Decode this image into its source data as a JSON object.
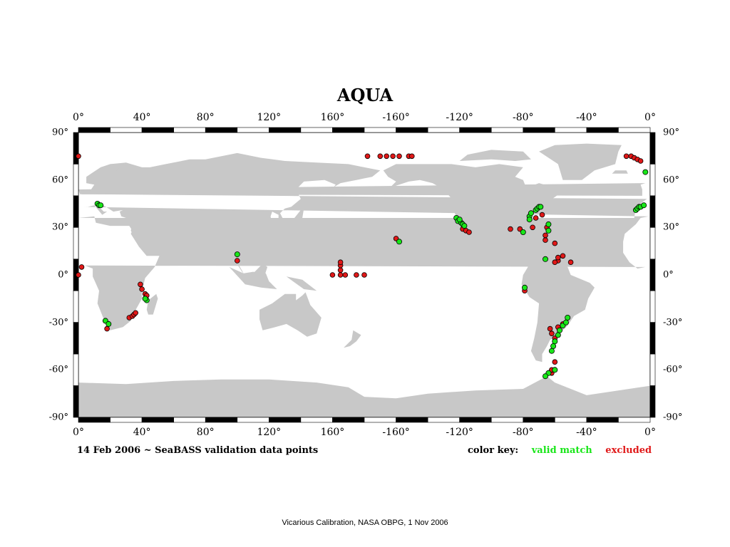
{
  "title": "AQUA",
  "caption": "14 Feb 2006 ~ SeaBASS validation data points",
  "key": {
    "label": "color key:",
    "valid_label": "valid match",
    "excluded_label": "excluded"
  },
  "footer": "Vicarious Calibration, NASA OBPG, 1 Nov 2006",
  "colors": {
    "land": "#c8c8c8",
    "ocean": "#ffffff",
    "valid": "#19e619",
    "excluded": "#e01818",
    "frame": "#000000"
  },
  "top_ticks": [
    "0°",
    "40°",
    "80°",
    "120°",
    "160°",
    "-160°",
    "-120°",
    "-80°",
    "-40°",
    "0°"
  ],
  "bottom_ticks": [
    "0°",
    "40°",
    "80°",
    "120°",
    "160°",
    "-160°",
    "-120°",
    "-80°",
    "-40°",
    "0°"
  ],
  "left_ticks": [
    "90°",
    "60°",
    "30°",
    "0°",
    "-30°",
    "-60°",
    "-90°"
  ],
  "right_ticks": [
    "90°",
    "60°",
    "30°",
    "0°",
    "-30°",
    "-60°",
    "-90°"
  ],
  "map": {
    "projection": "equirectangular",
    "lon_range": [
      0,
      360
    ],
    "lat_range": [
      -90,
      90
    ],
    "tick_lon": [
      0,
      40,
      80,
      120,
      160,
      200,
      240,
      280,
      320,
      360
    ],
    "tick_lat": [
      90,
      60,
      30,
      0,
      -30,
      -60,
      -90
    ]
  },
  "data_points": {
    "valid": [
      [
        -9,
        41
      ],
      [
        -8,
        42
      ],
      [
        -7,
        43
      ],
      [
        -6,
        43
      ],
      [
        -4,
        44
      ],
      [
        12,
        45
      ],
      [
        13,
        44
      ],
      [
        14,
        44
      ],
      [
        -3,
        65
      ],
      [
        100,
        13
      ],
      [
        17,
        -29
      ],
      [
        19,
        -31
      ],
      [
        43,
        -16
      ],
      [
        42,
        -15
      ],
      [
        -122,
        36
      ],
      [
        -121,
        34
      ],
      [
        -119,
        33
      ],
      [
        -118,
        32
      ],
      [
        -120,
        35
      ],
      [
        -117,
        31
      ],
      [
        -158,
        21
      ],
      [
        -76,
        37
      ],
      [
        -75,
        39
      ],
      [
        -72,
        41
      ],
      [
        -71,
        42
      ],
      [
        -70,
        43
      ],
      [
        -69,
        43
      ],
      [
        -80,
        27
      ],
      [
        -76,
        35
      ],
      [
        -64,
        32
      ],
      [
        -64,
        28
      ],
      [
        -66,
        10
      ],
      [
        -79,
        -8
      ],
      [
        -52,
        -27
      ],
      [
        -55,
        -32
      ],
      [
        -57,
        -35
      ],
      [
        -58,
        -38
      ],
      [
        -60,
        -42
      ],
      [
        -61,
        -45
      ],
      [
        -62,
        -48
      ],
      [
        -64,
        -62
      ],
      [
        -60,
        -60
      ],
      [
        -66,
        -64
      ],
      [
        -53,
        -30
      ]
    ],
    "excluded": [
      [
        -178,
        75
      ],
      [
        -170,
        75
      ],
      [
        -166,
        75
      ],
      [
        -162,
        75
      ],
      [
        -158,
        75
      ],
      [
        -152,
        75
      ],
      [
        -150,
        75
      ],
      [
        -15,
        75
      ],
      [
        -12,
        75
      ],
      [
        -10,
        74
      ],
      [
        -8,
        73
      ],
      [
        -6,
        72
      ],
      [
        0,
        75
      ],
      [
        -58,
        9
      ],
      [
        -60,
        8
      ],
      [
        0,
        0
      ],
      [
        2,
        5
      ],
      [
        32,
        -27
      ],
      [
        34,
        -26
      ],
      [
        35,
        -25
      ],
      [
        36,
        -24
      ],
      [
        39,
        -6
      ],
      [
        40,
        -9
      ],
      [
        42,
        -12
      ],
      [
        43,
        -13
      ],
      [
        100,
        9
      ],
      [
        18,
        -34
      ],
      [
        160,
        0
      ],
      [
        165,
        0
      ],
      [
        165,
        3
      ],
      [
        165,
        6
      ],
      [
        165,
        8
      ],
      [
        168,
        0
      ],
      [
        175,
        0
      ],
      [
        180,
        0
      ],
      [
        -160,
        23
      ],
      [
        -118,
        29
      ],
      [
        -116,
        28
      ],
      [
        -114,
        27
      ],
      [
        -88,
        29
      ],
      [
        -82,
        29
      ],
      [
        -74,
        30
      ],
      [
        -72,
        36
      ],
      [
        -68,
        38
      ],
      [
        -66,
        22
      ],
      [
        -66,
        25
      ],
      [
        -65,
        30
      ],
      [
        -60,
        20
      ],
      [
        -58,
        11
      ],
      [
        -55,
        12
      ],
      [
        -50,
        8
      ],
      [
        -79,
        -10
      ],
      [
        -60,
        -40
      ],
      [
        -62,
        -37
      ],
      [
        -63,
        -34
      ],
      [
        -58,
        -33
      ],
      [
        -60,
        -55
      ],
      [
        -62,
        -62
      ],
      [
        -62,
        -60
      ],
      [
        -55,
        -31
      ]
    ]
  }
}
